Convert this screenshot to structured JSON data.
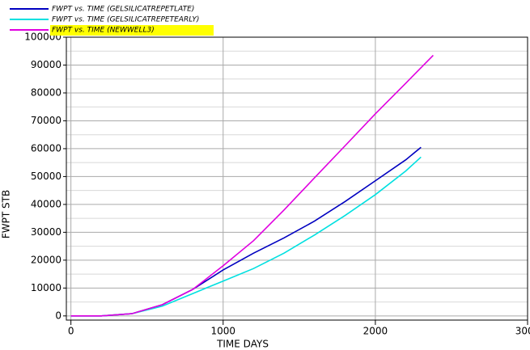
{
  "chart_data": {
    "type": "line",
    "xlabel": "TIME   DAYS",
    "ylabel": "FWPT   STB",
    "xlim": [
      -30,
      3000
    ],
    "ylim": [
      -1500,
      100000
    ],
    "xticks": [
      0,
      1000,
      2000,
      3000
    ],
    "yticks": [
      0,
      10000,
      20000,
      30000,
      40000,
      50000,
      60000,
      70000,
      80000,
      90000,
      100000
    ],
    "yminorticks": [
      5000,
      15000,
      25000,
      35000,
      45000,
      55000,
      65000,
      75000,
      85000,
      95000
    ],
    "grid": true,
    "series": [
      {
        "name": "FWPT vs. TIME (GELSILICATREPETLATE)",
        "color": "#0000c0",
        "x": [
          0,
          200,
          400,
          600,
          800,
          1000,
          1200,
          1400,
          1600,
          1800,
          2000,
          2200,
          2300
        ],
        "values": [
          0,
          0,
          800,
          4000,
          9500,
          16500,
          22500,
          28000,
          34000,
          41000,
          48500,
          56000,
          60500
        ]
      },
      {
        "name": "FWPT vs. TIME (GELSILICATREPETEARLY)",
        "color": "#00e0e0",
        "x": [
          0,
          200,
          400,
          600,
          800,
          1000,
          1200,
          1400,
          1600,
          1800,
          2000,
          2200,
          2300
        ],
        "values": [
          0,
          0,
          800,
          3500,
          8000,
          12500,
          17000,
          22500,
          29000,
          36000,
          43500,
          52000,
          57000
        ]
      },
      {
        "name": "FWPT vs. TIME (NEWWELL3)",
        "color": "#e000e0",
        "highlighted": true,
        "x": [
          0,
          200,
          400,
          600,
          800,
          1000,
          1200,
          1400,
          1600,
          1800,
          2000,
          2200,
          2380
        ],
        "values": [
          0,
          0,
          800,
          4000,
          9500,
          18000,
          27000,
          38000,
          49500,
          61000,
          72500,
          83500,
          93500
        ]
      }
    ]
  }
}
